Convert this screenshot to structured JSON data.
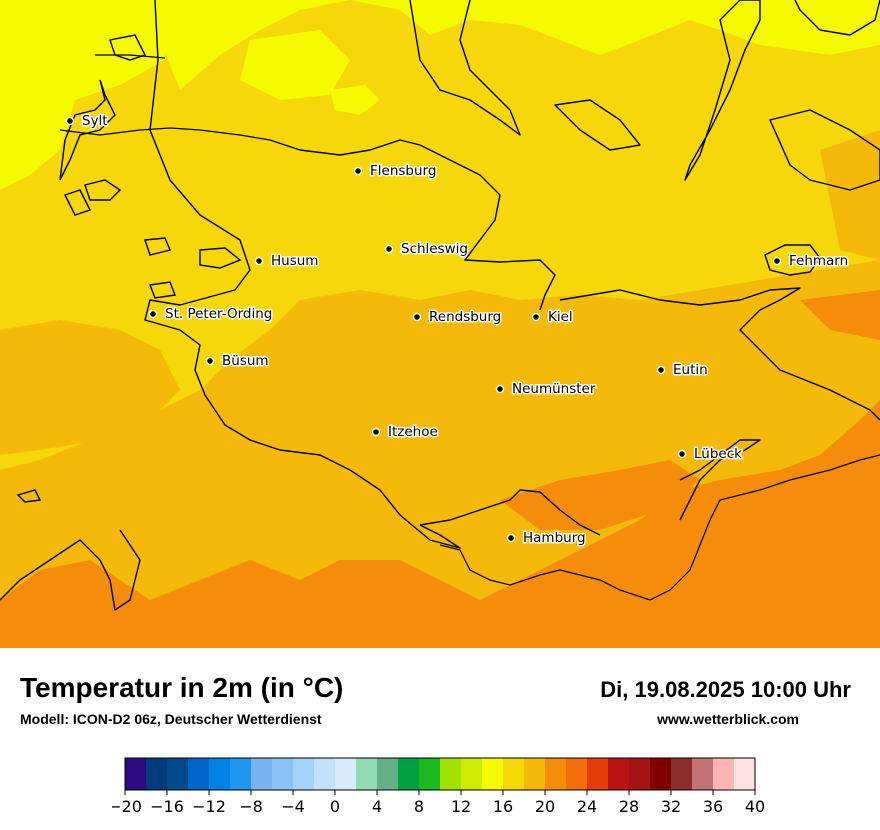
{
  "map": {
    "cities": [
      {
        "name": "Sylt"
      },
      {
        "name": "Flensburg"
      },
      {
        "name": "Schleswig"
      },
      {
        "name": "Husum"
      },
      {
        "name": "St. Peter-Ording"
      },
      {
        "name": "Rendsburg"
      },
      {
        "name": "Kiel"
      },
      {
        "name": "Büsum"
      },
      {
        "name": "Eutin"
      },
      {
        "name": "Neumünster"
      },
      {
        "name": "Itzehoe"
      },
      {
        "name": "Lübeck"
      },
      {
        "name": "Hamburg"
      },
      {
        "name": "Fehmarn"
      }
    ]
  },
  "header": {
    "title": "Temperatur in 2m (in °C)",
    "subtitle": "Modell: ICON-D2 06z, Deutscher Wetterdienst",
    "datetime": "Di, 19.08.2025 10:00 Uhr",
    "website": "www.wetterblick.com"
  },
  "legend": {
    "ticks": [
      "−20",
      "−16",
      "−12",
      "−8",
      "−4",
      "0",
      "4",
      "8",
      "12",
      "16",
      "20",
      "24",
      "28",
      "32",
      "36",
      "40"
    ],
    "colors": [
      "#2e0a82",
      "#003c7d",
      "#004a8c",
      "#0064c8",
      "#0082e6",
      "#1e96f0",
      "#78b4f0",
      "#8cc3f5",
      "#a5d2fa",
      "#c3e1fa",
      "#d7ebfc",
      "#91dcb4",
      "#64af87",
      "#00a041",
      "#1eb91e",
      "#a0e100",
      "#cdeb00",
      "#f5fa00",
      "#f5d70a",
      "#f5b90a",
      "#f58c0a",
      "#f56e0a",
      "#e63c0a",
      "#b91414",
      "#a51414",
      "#820000",
      "#8c2d2d",
      "#c37373",
      "#ffb4b4",
      "#ffe1e1"
    ]
  },
  "colors": {
    "band_yellow": "#f5fa00",
    "band_16_20": "#f5d70a",
    "band_20_22": "#f5b90a",
    "band_22_24": "#f58c0a"
  }
}
